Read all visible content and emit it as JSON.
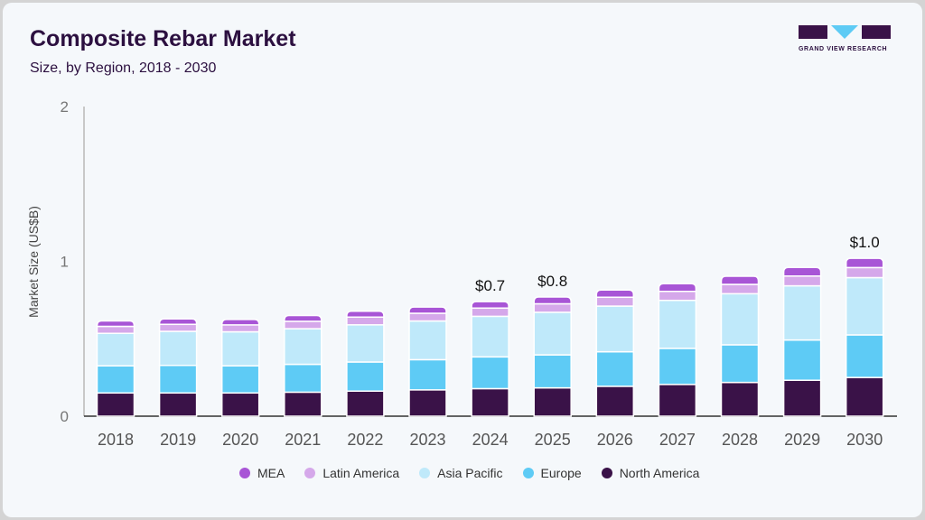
{
  "header": {
    "title": "Composite Rebar Market",
    "subtitle": "Size, by Region, 2018 - 2030",
    "logo_text": "GRAND VIEW RESEARCH"
  },
  "chart_data": {
    "type": "bar",
    "stacked": true,
    "title": "Composite Rebar Market",
    "subtitle": "Size, by Region, 2018 - 2030",
    "xlabel": "",
    "ylabel": "Market Size (US$B)",
    "ylim": [
      0,
      2
    ],
    "yticks": [
      "0",
      "1",
      "2"
    ],
    "ytick_values": [
      0,
      1,
      2
    ],
    "grid": false,
    "legend_position": "bottom",
    "categories": [
      "2018",
      "2019",
      "2020",
      "2021",
      "2022",
      "2023",
      "2024",
      "2025",
      "2026",
      "2027",
      "2028",
      "2029",
      "2030"
    ],
    "series": [
      {
        "name": "North America",
        "color": "#3a1248",
        "values": [
          0.15,
          0.15,
          0.15,
          0.155,
          0.162,
          0.17,
          0.178,
          0.183,
          0.193,
          0.205,
          0.218,
          0.232,
          0.25
        ]
      },
      {
        "name": "Europe",
        "color": "#5ecbf5",
        "values": [
          0.175,
          0.178,
          0.175,
          0.18,
          0.188,
          0.195,
          0.205,
          0.213,
          0.223,
          0.233,
          0.243,
          0.26,
          0.275
        ]
      },
      {
        "name": "Asia Pacific",
        "color": "#bfe9fa",
        "values": [
          0.21,
          0.22,
          0.22,
          0.23,
          0.24,
          0.25,
          0.262,
          0.275,
          0.295,
          0.31,
          0.33,
          0.35,
          0.37
        ]
      },
      {
        "name": "Latin America",
        "color": "#d5a8ea",
        "values": [
          0.045,
          0.045,
          0.045,
          0.048,
          0.05,
          0.05,
          0.053,
          0.055,
          0.057,
          0.058,
          0.06,
          0.063,
          0.065
        ]
      },
      {
        "name": "MEA",
        "color": "#a855d6",
        "values": [
          0.035,
          0.035,
          0.035,
          0.037,
          0.038,
          0.04,
          0.042,
          0.044,
          0.047,
          0.05,
          0.053,
          0.056,
          0.06
        ]
      }
    ],
    "annotations": [
      {
        "category": "2024",
        "text": "$0.7"
      },
      {
        "category": "2025",
        "text": "$0.8"
      },
      {
        "category": "2030",
        "text": "$1.0"
      }
    ]
  },
  "legend": [
    {
      "name": "MEA",
      "color": "#a855d6"
    },
    {
      "name": "Latin America",
      "color": "#d5a8ea"
    },
    {
      "name": "Asia Pacific",
      "color": "#bfe9fa"
    },
    {
      "name": "Europe",
      "color": "#5ecbf5"
    },
    {
      "name": "North America",
      "color": "#3a1248"
    }
  ]
}
